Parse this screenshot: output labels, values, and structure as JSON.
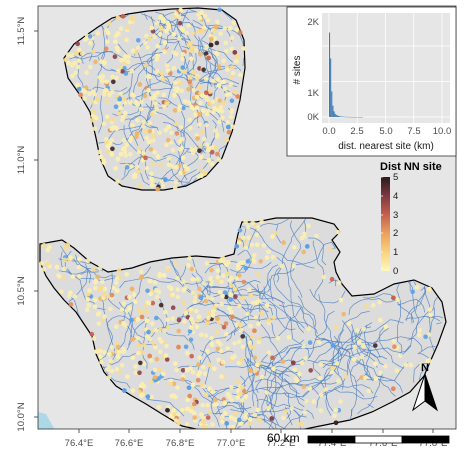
{
  "map": {
    "x_ticks": [
      "76.4°E",
      "76.6°E",
      "76.8°E",
      "77.0°E",
      "77.2°E",
      "77.4°E",
      "77.6°E",
      "77.8°E"
    ],
    "y_ticks": [
      "10.0°N",
      "10.5°N",
      "11.0°N",
      "11.5°N"
    ],
    "colors": {
      "panel_bg": "#e6e6e6",
      "land": "#dcdcdc",
      "boundary": "#000000",
      "streams": "#4a7fc1",
      "sea": "#add8e6",
      "blue_sites": "#5aa0e6"
    }
  },
  "legend": {
    "title": "Dist NN site",
    "ticks": [
      "5",
      "4",
      "3",
      "2",
      "1",
      "0"
    ],
    "range": [
      0,
      5
    ],
    "gradient": [
      "#fff8bd",
      "#f7d37e",
      "#ec9f5c",
      "#c65f4e",
      "#7d3840",
      "#2b1b1b"
    ]
  },
  "inset": {
    "xlabel": "dist. nearest site (km)",
    "ylabel": "# sites",
    "x_ticks": [
      "0.0",
      "2.5",
      "5.0",
      "7.5",
      "10.0"
    ],
    "y_ticks": [
      "0K",
      "1K",
      "2K"
    ],
    "chart_data": {
      "type": "bar",
      "x_range": [
        0,
        10
      ],
      "bin_width_km": 0.1,
      "bar_color": "#3d7ab5",
      "values": [
        2380,
        1650,
        720,
        320,
        160,
        90,
        60,
        42,
        30,
        22,
        17,
        13,
        10,
        8,
        6,
        5,
        4,
        4,
        3,
        3,
        2,
        2,
        2,
        1,
        1,
        1,
        1,
        1,
        1,
        1
      ]
    }
  },
  "scale_bar": {
    "label": "60 km"
  },
  "north_arrow": {
    "label": "N"
  }
}
